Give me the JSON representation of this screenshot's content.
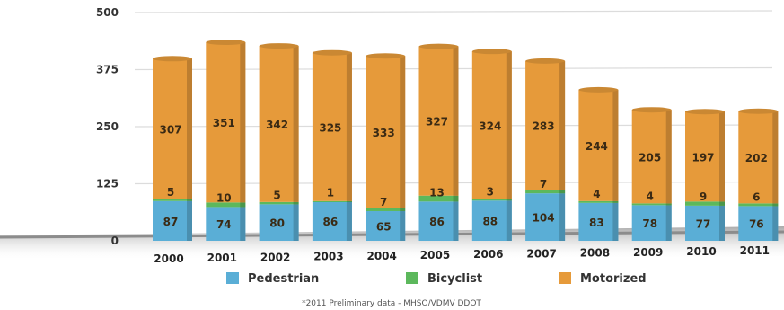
{
  "chart_data": {
    "type": "bar",
    "stacked": true,
    "categories": [
      "2000",
      "2001",
      "2002",
      "2003",
      "2004",
      "2005",
      "2006",
      "2007",
      "2008",
      "2009",
      "2010",
      "2011"
    ],
    "series": [
      {
        "name": "Pedestrian",
        "color": "#5aaed6",
        "values": [
          87,
          74,
          80,
          86,
          65,
          86,
          88,
          104,
          83,
          78,
          77,
          76
        ]
      },
      {
        "name": "Bicyclist",
        "color": "#5cb85c",
        "values": [
          5,
          10,
          5,
          1,
          7,
          13,
          3,
          7,
          4,
          4,
          9,
          6
        ]
      },
      {
        "name": "Motorized",
        "color": "#e69a3a",
        "values": [
          307,
          351,
          342,
          325,
          333,
          327,
          324,
          283,
          244,
          205,
          197,
          202
        ]
      }
    ],
    "y_ticks": [
      "0",
      "125",
      "250",
      "375",
      "500"
    ],
    "ylim": [
      0,
      500
    ],
    "grid": true,
    "legend_position": "bottom",
    "footnote": "*2011 Preliminary data - MHSO/VDMV DDOT"
  }
}
